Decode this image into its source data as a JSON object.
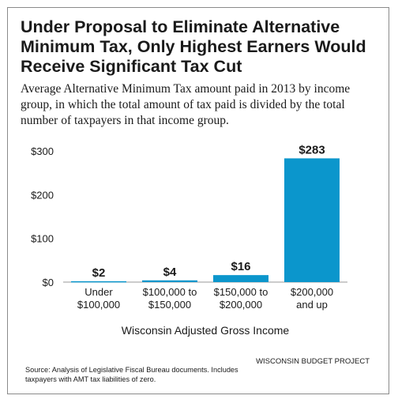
{
  "title": "Under Proposal to Eliminate Alternative Minimum Tax, Only Highest Earners Would Receive Significant Tax Cut",
  "subtitle": "Average Alternative Minimum Tax amount paid in 2013 by income group, in which the total amount of tax paid is divided by the total number of taxpayers in that income group.",
  "source": "Source: Analysis of Legislative Fiscal Bureau documents. Includes taxpayers with AMT tax liabilities of zero.",
  "brand": "WISCONSIN BUDGET PROJECT",
  "colors": {
    "bar": "#0b96cc",
    "text": "#1a1a1a"
  },
  "chart_data": {
    "type": "bar",
    "title": "",
    "xlabel": "Wisconsin Adjusted Gross Income",
    "ylabel": "",
    "ylim": [
      0,
      300
    ],
    "yticks": [
      "$0",
      "$100",
      "$200",
      "$300"
    ],
    "yticks_values": [
      0,
      100,
      200,
      300
    ],
    "grid": false,
    "categories": [
      [
        "Under",
        "$100,000"
      ],
      [
        "$100,000 to",
        "$150,000"
      ],
      [
        "$150,000 to",
        "$200,000"
      ],
      [
        "$200,000",
        "and up"
      ]
    ],
    "values": [
      2,
      4,
      16,
      283
    ],
    "data_labels": [
      "$2",
      "$4",
      "$16",
      "$283"
    ]
  }
}
